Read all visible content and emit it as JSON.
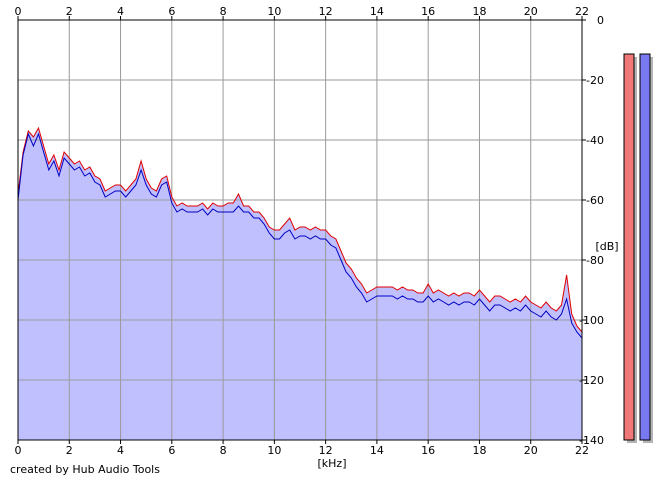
{
  "chart_data": {
    "type": "area",
    "xlabel": "[kHz]",
    "ylabel": "[dB]",
    "xlim": [
      0,
      22
    ],
    "ylim": [
      -140,
      0
    ],
    "x_ticks": [
      0,
      2,
      4,
      6,
      8,
      10,
      12,
      14,
      16,
      18,
      20,
      22
    ],
    "y_ticks": [
      0,
      -20,
      -40,
      -60,
      -80,
      -100,
      -120,
      -140
    ],
    "grid": true,
    "series": [
      {
        "color": "#e00000",
        "points": [
          [
            0.0,
            -58
          ],
          [
            0.2,
            -44
          ],
          [
            0.4,
            -37
          ],
          [
            0.6,
            -39
          ],
          [
            0.8,
            -36
          ],
          [
            1.0,
            -42
          ],
          [
            1.2,
            -48
          ],
          [
            1.4,
            -45
          ],
          [
            1.6,
            -50
          ],
          [
            1.8,
            -44
          ],
          [
            2.0,
            -46
          ],
          [
            2.2,
            -48
          ],
          [
            2.4,
            -47
          ],
          [
            2.6,
            -50
          ],
          [
            2.8,
            -49
          ],
          [
            3.0,
            -52
          ],
          [
            3.2,
            -53
          ],
          [
            3.4,
            -57
          ],
          [
            3.6,
            -56
          ],
          [
            3.8,
            -55
          ],
          [
            4.0,
            -55
          ],
          [
            4.2,
            -57
          ],
          [
            4.4,
            -55
          ],
          [
            4.6,
            -53
          ],
          [
            4.8,
            -47
          ],
          [
            5.0,
            -53
          ],
          [
            5.2,
            -56
          ],
          [
            5.4,
            -57
          ],
          [
            5.6,
            -53
          ],
          [
            5.8,
            -52
          ],
          [
            6.0,
            -59
          ],
          [
            6.2,
            -62
          ],
          [
            6.4,
            -61
          ],
          [
            6.6,
            -62
          ],
          [
            6.8,
            -62
          ],
          [
            7.0,
            -62
          ],
          [
            7.2,
            -61
          ],
          [
            7.4,
            -63
          ],
          [
            7.6,
            -61
          ],
          [
            7.8,
            -62
          ],
          [
            8.0,
            -62
          ],
          [
            8.2,
            -61
          ],
          [
            8.4,
            -61
          ],
          [
            8.6,
            -58
          ],
          [
            8.8,
            -62
          ],
          [
            9.0,
            -62
          ],
          [
            9.2,
            -64
          ],
          [
            9.4,
            -64
          ],
          [
            9.6,
            -66
          ],
          [
            9.8,
            -69
          ],
          [
            10.0,
            -70
          ],
          [
            10.2,
            -70
          ],
          [
            10.4,
            -68
          ],
          [
            10.6,
            -66
          ],
          [
            10.8,
            -70
          ],
          [
            11.0,
            -69
          ],
          [
            11.2,
            -69
          ],
          [
            11.4,
            -70
          ],
          [
            11.6,
            -69
          ],
          [
            11.8,
            -70
          ],
          [
            12.0,
            -70
          ],
          [
            12.2,
            -72
          ],
          [
            12.4,
            -73
          ],
          [
            12.6,
            -77
          ],
          [
            12.8,
            -81
          ],
          [
            13.0,
            -83
          ],
          [
            13.2,
            -86
          ],
          [
            13.4,
            -88
          ],
          [
            13.6,
            -91
          ],
          [
            13.8,
            -90
          ],
          [
            14.0,
            -89
          ],
          [
            14.2,
            -89
          ],
          [
            14.4,
            -89
          ],
          [
            14.6,
            -89
          ],
          [
            14.8,
            -90
          ],
          [
            15.0,
            -89
          ],
          [
            15.2,
            -90
          ],
          [
            15.4,
            -90
          ],
          [
            15.6,
            -91
          ],
          [
            15.8,
            -91
          ],
          [
            16.0,
            -88
          ],
          [
            16.2,
            -91
          ],
          [
            16.4,
            -90
          ],
          [
            16.6,
            -91
          ],
          [
            16.8,
            -92
          ],
          [
            17.0,
            -91
          ],
          [
            17.2,
            -92
          ],
          [
            17.4,
            -91
          ],
          [
            17.6,
            -91
          ],
          [
            17.8,
            -92
          ],
          [
            18.0,
            -90
          ],
          [
            18.2,
            -92
          ],
          [
            18.4,
            -94
          ],
          [
            18.6,
            -92
          ],
          [
            18.8,
            -92
          ],
          [
            19.0,
            -93
          ],
          [
            19.2,
            -94
          ],
          [
            19.4,
            -93
          ],
          [
            19.6,
            -94
          ],
          [
            19.8,
            -92
          ],
          [
            20.0,
            -94
          ],
          [
            20.2,
            -95
          ],
          [
            20.4,
            -96
          ],
          [
            20.6,
            -94
          ],
          [
            20.8,
            -96
          ],
          [
            21.0,
            -97
          ],
          [
            21.2,
            -95
          ],
          [
            21.4,
            -85
          ],
          [
            21.6,
            -98
          ],
          [
            21.8,
            -102
          ],
          [
            22.0,
            -104
          ]
        ]
      },
      {
        "color": "#0000c0",
        "points": [
          [
            0.0,
            -60
          ],
          [
            0.2,
            -45
          ],
          [
            0.4,
            -38
          ],
          [
            0.6,
            -42
          ],
          [
            0.8,
            -38
          ],
          [
            1.0,
            -44
          ],
          [
            1.2,
            -50
          ],
          [
            1.4,
            -47
          ],
          [
            1.6,
            -52
          ],
          [
            1.8,
            -46
          ],
          [
            2.0,
            -48
          ],
          [
            2.2,
            -50
          ],
          [
            2.4,
            -49
          ],
          [
            2.6,
            -52
          ],
          [
            2.8,
            -51
          ],
          [
            3.0,
            -54
          ],
          [
            3.2,
            -55
          ],
          [
            3.4,
            -59
          ],
          [
            3.6,
            -58
          ],
          [
            3.8,
            -57
          ],
          [
            4.0,
            -57
          ],
          [
            4.2,
            -59
          ],
          [
            4.4,
            -57
          ],
          [
            4.6,
            -55
          ],
          [
            4.8,
            -50
          ],
          [
            5.0,
            -55
          ],
          [
            5.2,
            -58
          ],
          [
            5.4,
            -59
          ],
          [
            5.6,
            -55
          ],
          [
            5.8,
            -54
          ],
          [
            6.0,
            -61
          ],
          [
            6.2,
            -64
          ],
          [
            6.4,
            -63
          ],
          [
            6.6,
            -64
          ],
          [
            6.8,
            -64
          ],
          [
            7.0,
            -64
          ],
          [
            7.2,
            -63
          ],
          [
            7.4,
            -65
          ],
          [
            7.6,
            -63
          ],
          [
            7.8,
            -64
          ],
          [
            8.0,
            -64
          ],
          [
            8.2,
            -64
          ],
          [
            8.4,
            -64
          ],
          [
            8.6,
            -62
          ],
          [
            8.8,
            -64
          ],
          [
            9.0,
            -64
          ],
          [
            9.2,
            -66
          ],
          [
            9.4,
            -66
          ],
          [
            9.6,
            -68
          ],
          [
            9.8,
            -71
          ],
          [
            10.0,
            -73
          ],
          [
            10.2,
            -73
          ],
          [
            10.4,
            -71
          ],
          [
            10.6,
            -70
          ],
          [
            10.8,
            -73
          ],
          [
            11.0,
            -72
          ],
          [
            11.2,
            -72
          ],
          [
            11.4,
            -73
          ],
          [
            11.6,
            -72
          ],
          [
            11.8,
            -73
          ],
          [
            12.0,
            -73
          ],
          [
            12.2,
            -75
          ],
          [
            12.4,
            -76
          ],
          [
            12.6,
            -80
          ],
          [
            12.8,
            -84
          ],
          [
            13.0,
            -86
          ],
          [
            13.2,
            -89
          ],
          [
            13.4,
            -91
          ],
          [
            13.6,
            -94
          ],
          [
            13.8,
            -93
          ],
          [
            14.0,
            -92
          ],
          [
            14.2,
            -92
          ],
          [
            14.4,
            -92
          ],
          [
            14.6,
            -92
          ],
          [
            14.8,
            -93
          ],
          [
            15.0,
            -92
          ],
          [
            15.2,
            -93
          ],
          [
            15.4,
            -93
          ],
          [
            15.6,
            -94
          ],
          [
            15.8,
            -94
          ],
          [
            16.0,
            -92
          ],
          [
            16.2,
            -94
          ],
          [
            16.4,
            -93
          ],
          [
            16.6,
            -94
          ],
          [
            16.8,
            -95
          ],
          [
            17.0,
            -94
          ],
          [
            17.2,
            -95
          ],
          [
            17.4,
            -94
          ],
          [
            17.6,
            -94
          ],
          [
            17.8,
            -95
          ],
          [
            18.0,
            -93
          ],
          [
            18.2,
            -95
          ],
          [
            18.4,
            -97
          ],
          [
            18.6,
            -95
          ],
          [
            18.8,
            -95
          ],
          [
            19.0,
            -96
          ],
          [
            19.2,
            -97
          ],
          [
            19.4,
            -96
          ],
          [
            19.6,
            -97
          ],
          [
            19.8,
            -95
          ],
          [
            20.0,
            -97
          ],
          [
            20.2,
            -98
          ],
          [
            20.4,
            -99
          ],
          [
            20.6,
            -97
          ],
          [
            20.8,
            -99
          ],
          [
            21.0,
            -100
          ],
          [
            21.2,
            -98
          ],
          [
            21.4,
            -93
          ],
          [
            21.6,
            -101
          ],
          [
            21.8,
            -104
          ],
          [
            22.0,
            -106
          ]
        ]
      }
    ],
    "level_meters": [
      {
        "color": "#f07878",
        "level": 1.0
      },
      {
        "color": "#7878f0",
        "level": 1.0
      }
    ],
    "fill_color": "#c0c0ff"
  },
  "footer": {
    "credit": "created by Hub Audio Tools"
  }
}
